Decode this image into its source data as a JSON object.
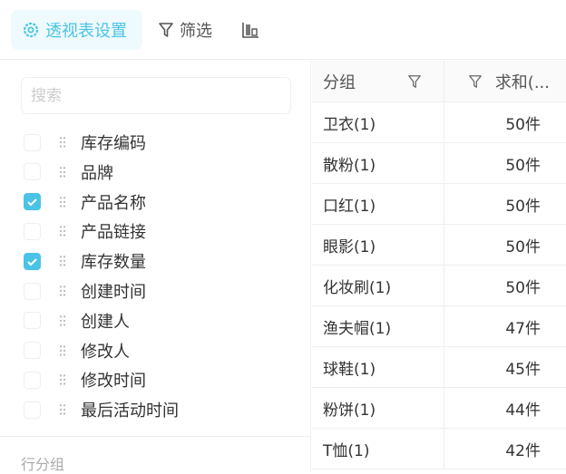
{
  "toolbar": {
    "pivot_settings": "透视表设置",
    "filter": "筛选",
    "accent": "#4bc3e6"
  },
  "search": {
    "placeholder": "搜索"
  },
  "fields": [
    {
      "label": "库存编码",
      "checked": false
    },
    {
      "label": "品牌",
      "checked": false
    },
    {
      "label": "产品名称",
      "checked": true
    },
    {
      "label": "产品链接",
      "checked": false
    },
    {
      "label": "库存数量",
      "checked": true
    },
    {
      "label": "创建时间",
      "checked": false
    },
    {
      "label": "创建人",
      "checked": false
    },
    {
      "label": "修改人",
      "checked": false
    },
    {
      "label": "修改时间",
      "checked": false
    },
    {
      "label": "最后活动时间",
      "checked": false
    }
  ],
  "row_group_label": "行分组",
  "table": {
    "headers": [
      "分组",
      "求和(..."
    ],
    "rows": [
      [
        "卫衣(1)",
        "50件"
      ],
      [
        "散粉(1)",
        "50件"
      ],
      [
        "口红(1)",
        "50件"
      ],
      [
        "眼影(1)",
        "50件"
      ],
      [
        "化妆刷(1)",
        "50件"
      ],
      [
        "渔夫帽(1)",
        "47件"
      ],
      [
        "球鞋(1)",
        "45件"
      ],
      [
        "粉饼(1)",
        "44件"
      ],
      [
        "T恤(1)",
        "42件"
      ]
    ]
  }
}
